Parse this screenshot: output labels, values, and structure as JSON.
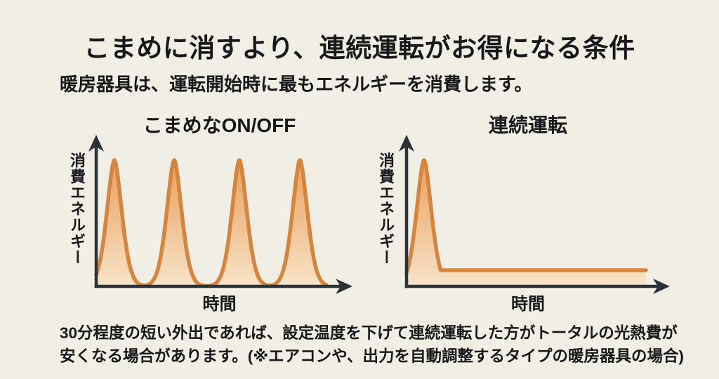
{
  "page": {
    "title": "こまめに消すより、連続運転がお得になる条件",
    "subtitle": "暖房器具は、運転開始時に最もエネルギーを消費します。",
    "footnote": {
      "line1": "30分程度の短い外出であれば、設定温度を下げて連続運転した方がトータルの光熱費が",
      "line2": "安くなる場合があります。(※エアコンや、出力を自動調整するタイプの暖房器具の場合)"
    }
  },
  "colors": {
    "background": "#f1eee5",
    "text": "#17181a",
    "axis": "#2d3237",
    "curve_stroke": "#d4853f",
    "curve_fill_top": "#eba25c",
    "curve_fill_bottom": "#f7e4c8"
  },
  "chart_data": [
    {
      "type": "area",
      "title": "こまめなON/OFF",
      "xlabel": "時間",
      "ylabel": "消費エネルギー",
      "x_range": [
        0,
        1
      ],
      "y_range": [
        0,
        1
      ],
      "grid": false,
      "legend": "none",
      "curve": {
        "kind": "startup-energy-spikes",
        "exponent": 1.7,
        "x_end": 0.95,
        "baseline": 0,
        "peaks": [
          {
            "center": 0.075,
            "height": 1.0,
            "width": 0.045
          },
          {
            "center": 0.322,
            "height": 1.0,
            "width": 0.045
          },
          {
            "center": 0.591,
            "height": 1.0,
            "width": 0.045
          },
          {
            "center": 0.841,
            "height": 1.0,
            "width": 0.045
          }
        ]
      }
    },
    {
      "type": "area",
      "title": "連続運転",
      "xlabel": "時間",
      "ylabel": "消費エネルギー",
      "x_range": [
        0,
        1
      ],
      "y_range": [
        0,
        1
      ],
      "grid": false,
      "legend": "none",
      "curve": {
        "kind": "startup-spike-then-steady",
        "exponent": 1.7,
        "x_end": 0.988,
        "baseline": 0,
        "peaks": [
          {
            "center": 0.072,
            "height": 1.0,
            "width": 0.045
          }
        ],
        "steady": {
          "from": 0.072,
          "level": 0.128
        }
      }
    }
  ]
}
